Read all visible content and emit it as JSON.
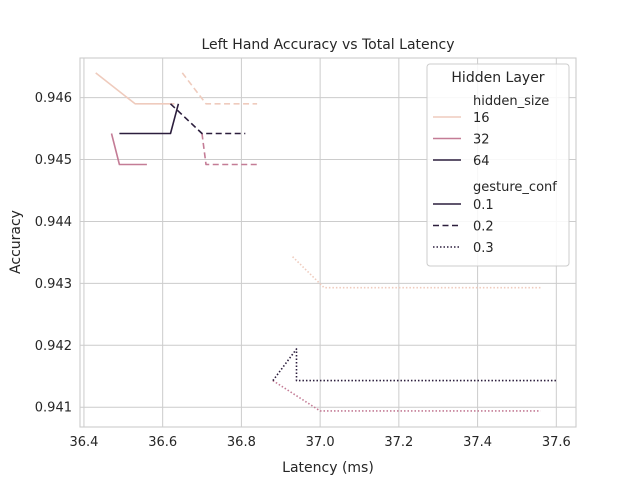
{
  "chart_data": {
    "type": "line",
    "title": "Left Hand Accuracy vs Total Latency",
    "xlabel": "Latency (ms)",
    "ylabel": "Accuracy",
    "xlim": [
      36.39,
      37.65
    ],
    "ylim": [
      0.94068,
      0.94664
    ],
    "xticks": [
      "36.4",
      "36.6",
      "36.8",
      "37.0",
      "37.2",
      "37.4",
      "37.6"
    ],
    "yticks": [
      "0.941",
      "0.942",
      "0.943",
      "0.944",
      "0.945",
      "0.946"
    ],
    "grid": true,
    "legend": {
      "placement": "top-right",
      "title": "Hidden Layer",
      "hue_title": "hidden_size",
      "style_title": "gesture_conf",
      "hue_entries": [
        {
          "label": "16",
          "color": "#efcbbd"
        },
        {
          "label": "32",
          "color": "#c47c96"
        },
        {
          "label": "64",
          "color": "#2c1e3d"
        }
      ],
      "style_entries": [
        {
          "label": "0.1",
          "dash": "solid"
        },
        {
          "label": "0.2",
          "dash": "dashed"
        },
        {
          "label": "0.3",
          "dash": "dotted"
        }
      ]
    },
    "series": [
      {
        "hidden_size": "16",
        "gesture_conf": "0.1",
        "color": "#efcbbd",
        "dash": "solid",
        "x": [
          36.43,
          36.53,
          36.63
        ],
        "y": [
          0.9464,
          0.9459,
          0.9459
        ]
      },
      {
        "hidden_size": "16",
        "gesture_conf": "0.2",
        "color": "#efcbbd",
        "dash": "dashed",
        "x": [
          36.65,
          36.71,
          36.84
        ],
        "y": [
          0.9464,
          0.9459,
          0.9459
        ]
      },
      {
        "hidden_size": "16",
        "gesture_conf": "0.3",
        "color": "#efcbbd",
        "dash": "dotted",
        "x": [
          36.93,
          37.01,
          37.56
        ],
        "y": [
          0.94343,
          0.94293,
          0.94293
        ]
      },
      {
        "hidden_size": "32",
        "gesture_conf": "0.1",
        "color": "#c47c96",
        "dash": "solid",
        "x": [
          36.47,
          36.49,
          36.56
        ],
        "y": [
          0.94542,
          0.94492,
          0.94492
        ]
      },
      {
        "hidden_size": "32",
        "gesture_conf": "0.2",
        "color": "#c47c96",
        "dash": "dashed",
        "x": [
          36.7,
          36.71,
          36.84
        ],
        "y": [
          0.94542,
          0.94492,
          0.94492
        ]
      },
      {
        "hidden_size": "32",
        "gesture_conf": "0.3",
        "color": "#c47c96",
        "dash": "dotted",
        "x": [
          36.88,
          37.0,
          37.56
        ],
        "y": [
          0.94143,
          0.94094,
          0.94094
        ]
      },
      {
        "hidden_size": "64",
        "gesture_conf": "0.1",
        "color": "#2c1e3d",
        "dash": "solid",
        "x": [
          36.49,
          36.62,
          36.64
        ],
        "y": [
          0.94542,
          0.94542,
          0.9459
        ]
      },
      {
        "hidden_size": "64",
        "gesture_conf": "0.2",
        "color": "#2c1e3d",
        "dash": "dashed",
        "x": [
          36.62,
          36.7,
          36.81
        ],
        "y": [
          0.9459,
          0.94542,
          0.94542
        ]
      },
      {
        "hidden_size": "64",
        "gesture_conf": "0.3",
        "color": "#2c1e3d",
        "dash": "dotted",
        "x": [
          36.88,
          36.94,
          36.94,
          37.6
        ],
        "y": [
          0.94143,
          0.94194,
          0.94143,
          0.94143
        ]
      }
    ]
  }
}
